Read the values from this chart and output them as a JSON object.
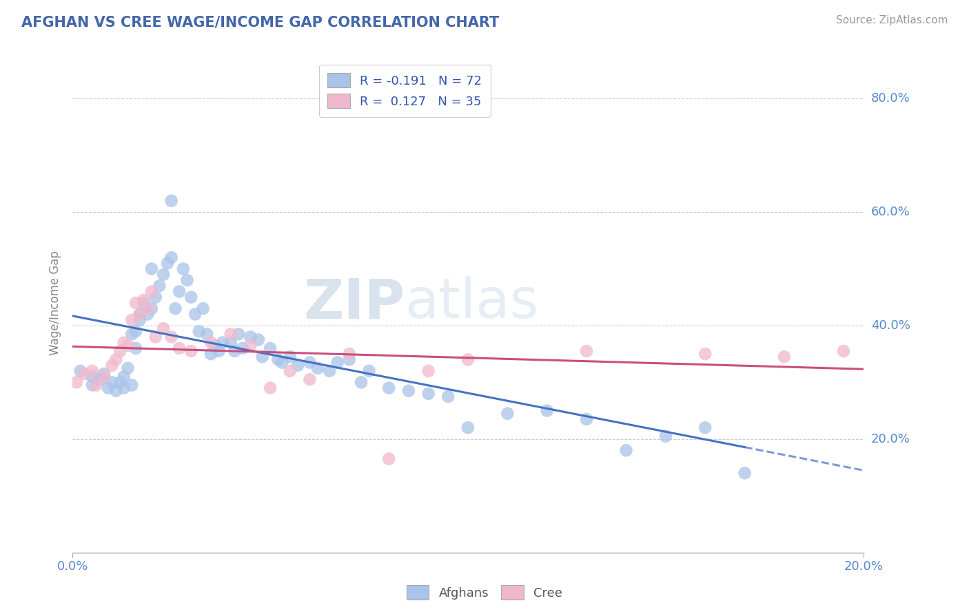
{
  "title": "AFGHAN VS CREE WAGE/INCOME GAP CORRELATION CHART",
  "source": "Source: ZipAtlas.com",
  "ylabel": "Wage/Income Gap",
  "legend_lines": [
    {
      "label": "R = -0.191   N = 72",
      "color": "#a8c4e8"
    },
    {
      "label": "R =  0.127   N = 35",
      "color": "#f0b8cc"
    }
  ],
  "afghans_color": "#a8c4e8",
  "cree_color": "#f0b8cc",
  "trend_afghan_color": "#4472c4",
  "trend_cree_color": "#c94f7c",
  "watermark_zip": "ZIP",
  "watermark_atlas": "atlas",
  "background_color": "#ffffff",
  "grid_color": "#cccccc",
  "title_color": "#4466aa",
  "axis_label_color": "#5588cc",
  "afghans_x": [
    0.2,
    0.5,
    0.5,
    0.7,
    0.8,
    0.9,
    1.0,
    1.1,
    1.2,
    1.3,
    1.3,
    1.4,
    1.5,
    1.5,
    1.6,
    1.6,
    1.7,
    1.7,
    1.8,
    1.9,
    2.0,
    2.0,
    2.1,
    2.2,
    2.3,
    2.4,
    2.5,
    2.5,
    2.6,
    2.7,
    2.8,
    2.9,
    3.0,
    3.1,
    3.2,
    3.3,
    3.4,
    3.5,
    3.6,
    3.7,
    3.8,
    4.0,
    4.1,
    4.2,
    4.3,
    4.5,
    4.7,
    4.8,
    5.0,
    5.2,
    5.3,
    5.5,
    5.7,
    6.0,
    6.2,
    6.5,
    6.7,
    7.0,
    7.3,
    7.5,
    8.0,
    8.5,
    9.0,
    9.5,
    10.0,
    11.0,
    12.0,
    13.0,
    14.0,
    15.0,
    16.0,
    17.0
  ],
  "afghans_y": [
    32.0,
    31.0,
    29.5,
    30.5,
    31.5,
    29.0,
    30.0,
    28.5,
    30.0,
    31.0,
    29.0,
    32.5,
    29.5,
    38.5,
    36.0,
    39.0,
    42.0,
    41.0,
    44.0,
    42.0,
    43.0,
    50.0,
    45.0,
    47.0,
    49.0,
    51.0,
    52.0,
    62.0,
    43.0,
    46.0,
    50.0,
    48.0,
    45.0,
    42.0,
    39.0,
    43.0,
    38.5,
    35.0,
    36.5,
    35.5,
    37.0,
    37.0,
    35.5,
    38.5,
    36.0,
    38.0,
    37.5,
    34.5,
    36.0,
    34.0,
    33.5,
    34.5,
    33.0,
    33.5,
    32.5,
    32.0,
    33.5,
    34.0,
    30.0,
    32.0,
    29.0,
    28.5,
    28.0,
    27.5,
    22.0,
    24.5,
    25.0,
    23.5,
    18.0,
    20.5,
    22.0,
    14.0
  ],
  "cree_x": [
    0.1,
    0.3,
    0.5,
    0.6,
    0.8,
    1.0,
    1.1,
    1.2,
    1.3,
    1.4,
    1.5,
    1.6,
    1.7,
    1.8,
    1.9,
    2.0,
    2.1,
    2.3,
    2.5,
    2.7,
    3.0,
    3.5,
    4.0,
    4.5,
    5.0,
    5.5,
    6.0,
    7.0,
    8.0,
    9.0,
    10.0,
    13.0,
    16.0,
    18.0,
    19.5
  ],
  "cree_y": [
    30.0,
    31.5,
    32.0,
    29.5,
    31.0,
    33.0,
    34.0,
    35.5,
    37.0,
    36.5,
    41.0,
    44.0,
    42.0,
    44.5,
    43.0,
    46.0,
    38.0,
    39.5,
    38.0,
    36.0,
    35.5,
    37.0,
    38.5,
    36.5,
    29.0,
    32.0,
    30.5,
    35.0,
    16.5,
    32.0,
    34.0,
    35.5,
    35.0,
    34.5,
    35.5
  ],
  "xlim": [
    0.0,
    20.0
  ],
  "ylim": [
    0.0,
    88.0
  ],
  "y_gridlines": [
    0.0,
    20.0,
    40.0,
    60.0,
    80.0
  ],
  "y_right_labels": [
    "",
    "20.0%",
    "40.0%",
    "60.0%",
    "80.0%"
  ]
}
